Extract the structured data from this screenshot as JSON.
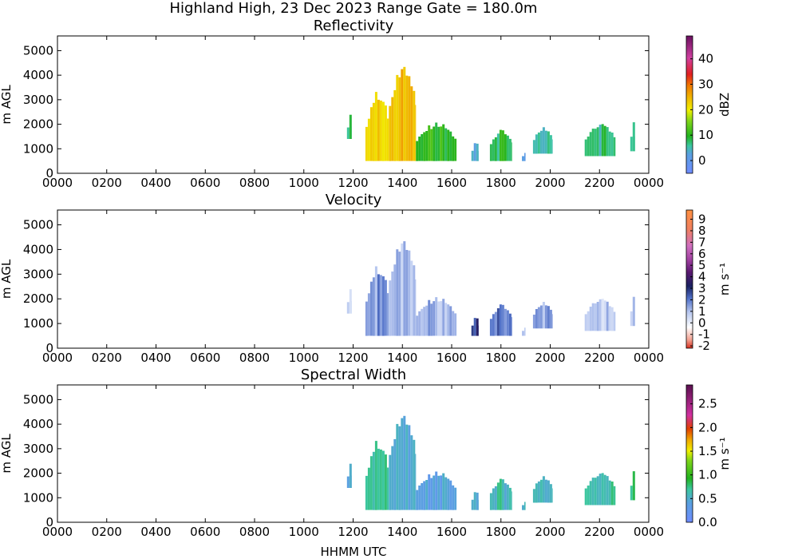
{
  "figure": {
    "title": "Highland High, 23 Dec 2023 Range Gate = 180.0m",
    "xlabel": "HHMM UTC"
  },
  "chart_data": [
    {
      "type": "heatmap",
      "title": "Reflectivity",
      "ylabel": "m AGL",
      "xlabel": "",
      "x_ticks": [
        "0000",
        "0200",
        "0400",
        "0600",
        "0800",
        "1000",
        "1200",
        "1400",
        "1600",
        "1800",
        "2000",
        "2200",
        "0000"
      ],
      "y_ticks": [
        0,
        1000,
        2000,
        3000,
        4000,
        5000
      ],
      "xlim_hours": [
        0,
        24
      ],
      "ylim": [
        0,
        5600
      ],
      "colorbar": {
        "label": "dBZ",
        "range": [
          -5,
          49
        ],
        "ticks": [
          "0",
          "10",
          "20",
          "30",
          "40"
        ],
        "tick_values": [
          0,
          10,
          20,
          30,
          40
        ],
        "cmap": "reflectivity"
      },
      "echo_regions": [
        {
          "t0": 11.75,
          "t1": 11.95,
          "ytop": 2400,
          "ybot": 1400,
          "value": 6
        },
        {
          "t0": 12.5,
          "t1": 13.45,
          "ytop": 3400,
          "ybot": 500,
          "value": 22
        },
        {
          "t0": 13.45,
          "t1": 14.55,
          "ytop": 4600,
          "ybot": 500,
          "value": 24
        },
        {
          "t0": 14.55,
          "t1": 16.2,
          "ytop": 2100,
          "ybot": 500,
          "value": 10
        },
        {
          "t0": 16.8,
          "t1": 17.1,
          "ytop": 1300,
          "ybot": 500,
          "value": 4
        },
        {
          "t0": 17.55,
          "t1": 18.45,
          "ytop": 1800,
          "ybot": 500,
          "value": 8
        },
        {
          "t0": 18.85,
          "t1": 19.0,
          "ytop": 900,
          "ybot": 500,
          "value": 2
        },
        {
          "t0": 19.3,
          "t1": 20.1,
          "ytop": 1900,
          "ybot": 800,
          "value": 5
        },
        {
          "t0": 21.4,
          "t1": 22.65,
          "ytop": 2100,
          "ybot": 700,
          "value": 7
        },
        {
          "t0": 23.25,
          "t1": 23.45,
          "ytop": 2100,
          "ybot": 900,
          "value": 6
        }
      ]
    },
    {
      "type": "heatmap",
      "title": "Velocity",
      "ylabel": "m AGL",
      "xlabel": "",
      "x_ticks": [
        "0000",
        "0200",
        "0400",
        "0600",
        "0800",
        "1000",
        "1200",
        "1400",
        "1600",
        "1800",
        "2000",
        "2200",
        "0000"
      ],
      "y_ticks": [
        0,
        1000,
        2000,
        3000,
        4000,
        5000
      ],
      "xlim_hours": [
        0,
        24
      ],
      "ylim": [
        0,
        5600
      ],
      "colorbar": {
        "label": "m s⁻¹",
        "range": [
          -2.2,
          9.8
        ],
        "ticks": [
          "-2",
          "-1",
          "0",
          "1",
          "2",
          "3",
          "4",
          "5",
          "6",
          "7",
          "8",
          "9"
        ],
        "tick_values": [
          -2,
          -1,
          0,
          1,
          2,
          3,
          4,
          5,
          6,
          7,
          8,
          9
        ],
        "cmap": "velocity"
      },
      "echo_regions": [
        {
          "t0": 11.75,
          "t1": 11.95,
          "ytop": 2400,
          "ybot": 1400,
          "value": 0.8
        },
        {
          "t0": 12.5,
          "t1": 13.45,
          "ytop": 3400,
          "ybot": 500,
          "value": 1.5
        },
        {
          "t0": 13.45,
          "t1": 14.55,
          "ytop": 4600,
          "ybot": 500,
          "value": 1.0
        },
        {
          "t0": 14.55,
          "t1": 16.2,
          "ytop": 2100,
          "ybot": 500,
          "value": 1.2
        },
        {
          "t0": 16.8,
          "t1": 17.1,
          "ytop": 1300,
          "ybot": 500,
          "value": 2.8
        },
        {
          "t0": 17.55,
          "t1": 18.45,
          "ytop": 1800,
          "ybot": 500,
          "value": 2.0
        },
        {
          "t0": 18.85,
          "t1": 19.0,
          "ytop": 900,
          "ybot": 500,
          "value": 1.0
        },
        {
          "t0": 19.3,
          "t1": 20.1,
          "ytop": 1900,
          "ybot": 800,
          "value": 1.5
        },
        {
          "t0": 21.4,
          "t1": 22.65,
          "ytop": 2100,
          "ybot": 700,
          "value": 0.8
        },
        {
          "t0": 23.25,
          "t1": 23.45,
          "ytop": 2100,
          "ybot": 900,
          "value": 0.6
        }
      ]
    },
    {
      "type": "heatmap",
      "title": "Spectral Width",
      "ylabel": "m AGL",
      "xlabel": "HHMM UTC",
      "x_ticks": [
        "0000",
        "0200",
        "0400",
        "0600",
        "0800",
        "1000",
        "1200",
        "1400",
        "1600",
        "1800",
        "2000",
        "2200",
        "0000"
      ],
      "y_ticks": [
        0,
        1000,
        2000,
        3000,
        4000,
        5000
      ],
      "xlim_hours": [
        0,
        24
      ],
      "ylim": [
        0,
        5600
      ],
      "colorbar": {
        "label": "m s⁻¹",
        "range": [
          0,
          2.9
        ],
        "ticks": [
          "0.0",
          "0.5",
          "1.0",
          "1.5",
          "2.0",
          "2.5"
        ],
        "tick_values": [
          0,
          0.5,
          1.0,
          1.5,
          2.0,
          2.5
        ],
        "cmap": "width"
      },
      "echo_regions": [
        {
          "t0": 11.75,
          "t1": 11.95,
          "ytop": 2400,
          "ybot": 1400,
          "value": 0.4
        },
        {
          "t0": 12.5,
          "t1": 13.45,
          "ytop": 3400,
          "ybot": 500,
          "value": 0.7
        },
        {
          "t0": 13.45,
          "t1": 14.55,
          "ytop": 4600,
          "ybot": 500,
          "value": 0.5
        },
        {
          "t0": 14.55,
          "t1": 16.2,
          "ytop": 2100,
          "ybot": 500,
          "value": 0.4
        },
        {
          "t0": 16.8,
          "t1": 17.1,
          "ytop": 1300,
          "ybot": 500,
          "value": 0.5
        },
        {
          "t0": 17.55,
          "t1": 18.45,
          "ytop": 1800,
          "ybot": 500,
          "value": 0.6
        },
        {
          "t0": 18.85,
          "t1": 19.0,
          "ytop": 900,
          "ybot": 500,
          "value": 0.5
        },
        {
          "t0": 19.3,
          "t1": 20.1,
          "ytop": 1900,
          "ybot": 800,
          "value": 0.6
        },
        {
          "t0": 21.4,
          "t1": 22.65,
          "ytop": 2100,
          "ybot": 700,
          "value": 0.7
        },
        {
          "t0": 23.25,
          "t1": 23.45,
          "ytop": 2100,
          "ybot": 900,
          "value": 0.7
        }
      ]
    }
  ]
}
